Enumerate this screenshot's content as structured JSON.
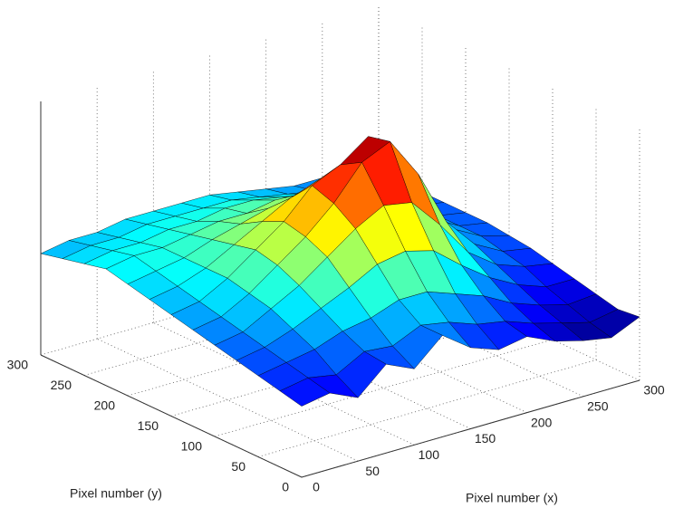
{
  "chart_data": {
    "type": "surface",
    "x_label": "Pixel number (x)",
    "y_label": "Pixel number (y)",
    "colormap": "jet",
    "grid": true,
    "xlim": [
      0,
      300
    ],
    "ylim": [
      0,
      300
    ],
    "zlim": [
      0,
      100
    ],
    "xticks": [
      0,
      50,
      100,
      150,
      200,
      250,
      300
    ],
    "yticks": [
      0,
      50,
      100,
      150,
      200,
      250,
      300
    ],
    "x": [
      0,
      25,
      50,
      75,
      100,
      125,
      150,
      175,
      200,
      225,
      250,
      275,
      300
    ],
    "y": [
      0,
      25,
      50,
      75,
      100,
      125,
      150,
      175,
      200,
      225,
      250,
      275,
      300
    ],
    "z": [
      [
        28,
        30,
        25,
        35,
        30,
        40,
        32,
        28,
        30,
        25,
        22,
        20,
        25
      ],
      [
        30,
        32,
        30,
        36,
        35,
        40,
        38,
        34,
        32,
        28,
        25,
        22,
        24
      ],
      [
        32,
        34,
        36,
        40,
        42,
        46,
        46,
        42,
        38,
        32,
        28,
        25,
        26
      ],
      [
        34,
        36,
        40,
        45,
        50,
        56,
        58,
        55,
        46,
        38,
        32,
        28,
        28
      ],
      [
        36,
        38,
        44,
        50,
        58,
        66,
        72,
        70,
        58,
        44,
        36,
        32,
        30
      ],
      [
        38,
        40,
        46,
        54,
        62,
        72,
        85,
        90,
        74,
        52,
        40,
        34,
        32
      ],
      [
        40,
        42,
        48,
        56,
        64,
        75,
        80,
        88,
        76,
        54,
        42,
        36,
        33
      ],
      [
        42,
        44,
        48,
        54,
        60,
        66,
        70,
        74,
        64,
        50,
        42,
        36,
        34
      ],
      [
        44,
        46,
        48,
        52,
        55,
        58,
        60,
        60,
        54,
        46,
        40,
        36,
        34
      ],
      [
        46,
        48,
        48,
        50,
        52,
        52,
        54,
        52,
        48,
        44,
        40,
        36,
        34
      ],
      [
        44,
        46,
        46,
        48,
        48,
        50,
        50,
        48,
        46,
        42,
        40,
        36,
        34
      ],
      [
        42,
        44,
        44,
        46,
        46,
        46,
        46,
        44,
        42,
        40,
        38,
        36,
        34
      ],
      [
        40,
        42,
        42,
        44,
        44,
        44,
        44,
        42,
        40,
        38,
        38,
        36,
        35
      ]
    ]
  }
}
